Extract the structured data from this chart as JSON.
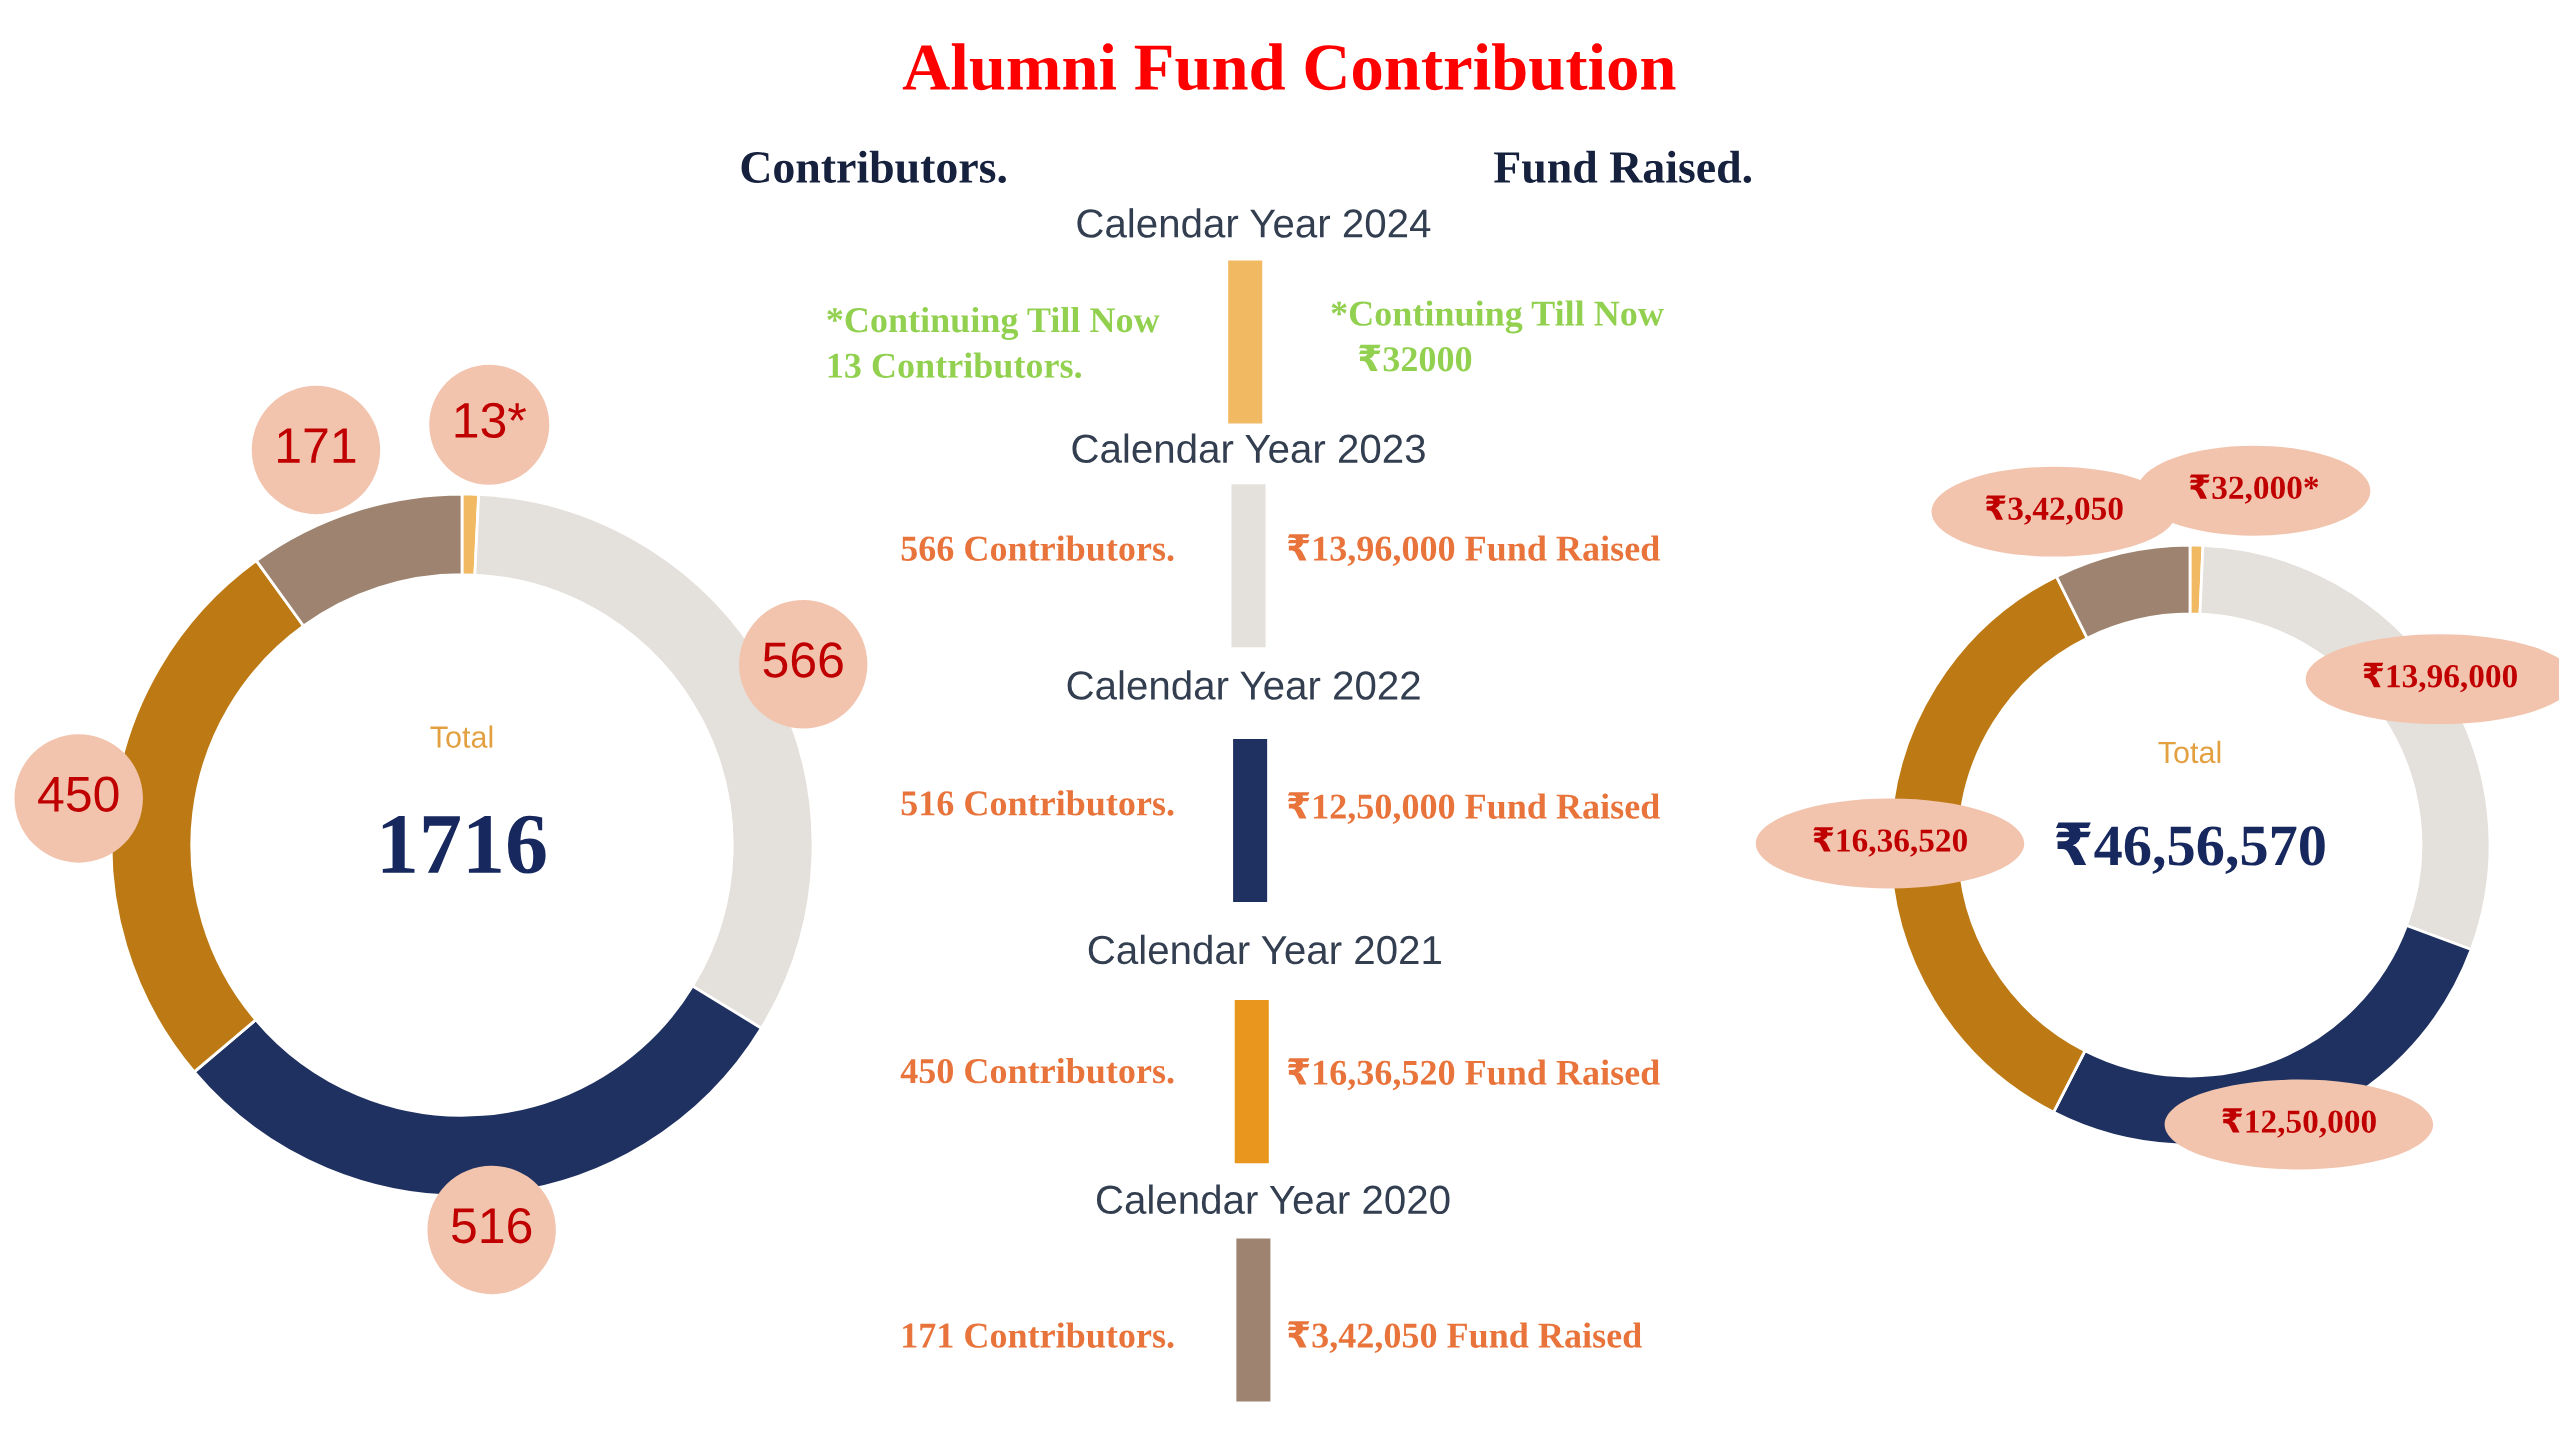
{
  "chart_data": [
    {
      "type": "donut",
      "title": "Contributors.",
      "categories": [
        null,
        null,
        null,
        null,
        null
      ],
      "values": [
        13,
        566,
        516,
        450,
        171
      ],
      "colors": [
        "#F0B962",
        "#E4E0DB",
        "#1F3160",
        "#BD7A14",
        "#9E8470"
      ],
      "value_labels": [
        "13*",
        "566",
        "516",
        "450",
        "171"
      ],
      "annotations": [
        "Total",
        "1716"
      ]
    },
    {
      "type": "other",
      "title": "Alumni Fund Contribution",
      "colors": [
        "#F0B962",
        "#E4E0DB",
        "#1F3160",
        "#E8961E",
        "#9E8470"
      ],
      "annotations": [
        "Calendar Year 2024",
        "*Continuing Till Now\n13 Contributors.",
        "*Continuing Till Now\n   ₹32000",
        "Calendar Year 2023",
        "566 Contributors.",
        "₹13,96,000 Fund Raised",
        "Calendar Year 2022",
        "516 Contributors.",
        "₹12,50,000 Fund Raised",
        "Calendar Year 2021",
        "450 Contributors.",
        "₹16,36,520 Fund Raised",
        "Calendar Year 2020",
        "171 Contributors.",
        "₹3,42,050 Fund Raised"
      ]
    },
    {
      "type": "donut",
      "title": "Fund Raised.",
      "categories": [
        null,
        null,
        null,
        null,
        null
      ],
      "values": [
        32000,
        1396000,
        1250000,
        1636520,
        342050
      ],
      "colors": [
        "#F0B962",
        "#E4E0DB",
        "#1F3160",
        "#BD7A14",
        "#9E8470"
      ],
      "value_labels": [
        "₹32,000*",
        "₹13,96,000",
        "₹12,50,000",
        "₹16,36,520",
        "₹3,42,050"
      ],
      "annotations": [
        "Total",
        "₹46,56,570"
      ]
    }
  ]
}
